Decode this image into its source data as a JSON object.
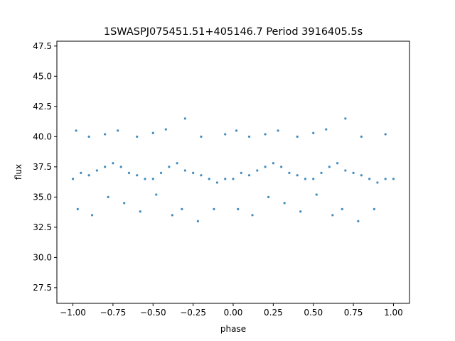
{
  "chart_data": {
    "type": "scatter",
    "title": "1SWASPJ075451.51+405146.7 Period 3916405.5s",
    "xlabel": "phase",
    "ylabel": "flux",
    "xlim": [
      -1.1,
      1.1
    ],
    "ylim": [
      26.2,
      47.9
    ],
    "xticks": [
      -1.0,
      -0.75,
      -0.5,
      -0.25,
      0.0,
      0.25,
      0.5,
      0.75,
      1.0
    ],
    "xtick_labels": [
      "−1.00",
      "−0.75",
      "−0.50",
      "−0.25",
      "0.00",
      "0.25",
      "0.50",
      "0.75",
      "1.00"
    ],
    "yticks": [
      27.5,
      30.0,
      32.5,
      35.0,
      37.5,
      40.0,
      42.5,
      45.0,
      47.5
    ],
    "ytick_labels": [
      "27.5",
      "30.0",
      "32.5",
      "35.0",
      "37.5",
      "40.0",
      "42.5",
      "45.0",
      "47.5"
    ],
    "grid": false,
    "marker_color": "#1f77b4",
    "series": [
      {
        "x": [
          -1.0,
          -0.95,
          -0.9,
          -0.85,
          -0.8,
          -0.75,
          -0.7,
          -0.65,
          -0.6,
          -0.55,
          -0.5,
          -0.45,
          -0.4,
          -0.35,
          -0.3,
          -0.25,
          -0.2,
          -0.15,
          -0.1,
          -0.05,
          0.0,
          0.05,
          0.1,
          0.15,
          0.2,
          0.25,
          0.3,
          0.35,
          0.4,
          0.45,
          0.5,
          0.55,
          0.6,
          0.65,
          0.7,
          0.75,
          0.8,
          0.85,
          0.9,
          0.95,
          1.0
        ],
        "y": [
          36.5,
          37.0,
          36.8,
          37.2,
          37.5,
          37.8,
          37.5,
          37.0,
          36.8,
          36.5,
          36.5,
          37.0,
          37.5,
          37.8,
          37.2,
          37.0,
          36.8,
          36.5,
          36.2,
          36.5,
          36.5,
          37.0,
          36.8,
          37.2,
          37.5,
          37.8,
          37.5,
          37.0,
          36.8,
          36.5,
          36.5,
          37.0,
          37.5,
          37.8,
          37.2,
          37.0,
          36.8,
          36.5,
          36.2,
          36.5,
          36.5
        ]
      },
      {
        "x": [
          -0.98,
          -0.9,
          -0.8,
          -0.72,
          -0.6,
          -0.5,
          -0.42,
          -0.3,
          -0.2,
          -0.05,
          0.02,
          0.1,
          0.2,
          0.28,
          0.4,
          0.5,
          0.58,
          0.7,
          0.8,
          0.95
        ],
        "y": [
          40.5,
          40.0,
          40.2,
          40.5,
          40.0,
          40.3,
          40.6,
          41.5,
          40.0,
          40.2,
          40.5,
          40.0,
          40.2,
          40.5,
          40.0,
          40.3,
          40.6,
          41.5,
          40.0,
          40.2
        ]
      },
      {
        "x": [
          -0.97,
          -0.88,
          -0.78,
          -0.68,
          -0.58,
          -0.48,
          -0.38,
          -0.32,
          -0.22,
          -0.12,
          0.03,
          0.12,
          0.22,
          0.32,
          0.42,
          0.52,
          0.62,
          0.68,
          0.78,
          0.88
        ],
        "y": [
          34.0,
          33.5,
          35.0,
          34.5,
          33.8,
          35.2,
          33.5,
          34.0,
          33.0,
          34.0,
          34.0,
          33.5,
          35.0,
          34.5,
          33.8,
          35.2,
          33.5,
          34.0,
          33.0,
          34.0
        ]
      }
    ]
  }
}
